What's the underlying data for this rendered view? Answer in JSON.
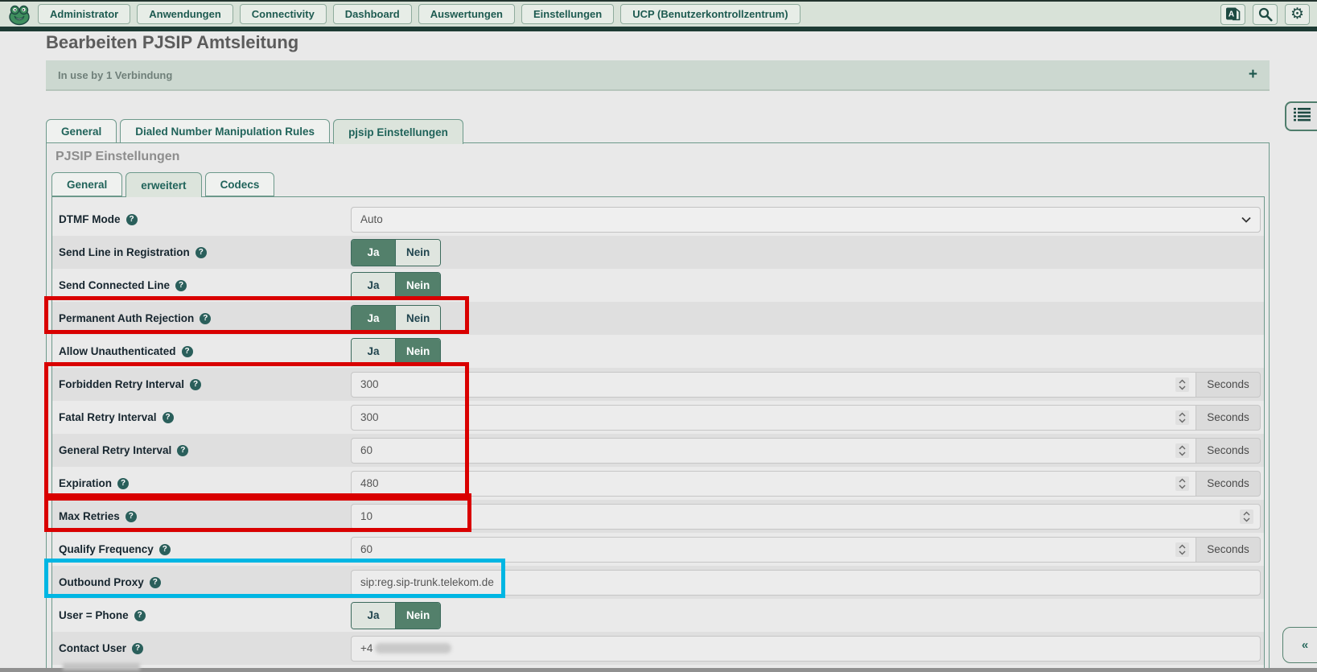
{
  "nav": {
    "menu_items": [
      "Administrator",
      "Anwendungen",
      "Connectivity",
      "Dashboard",
      "Auswertungen",
      "Einstellungen",
      "UCP (Benutzerkontrollzentrum)"
    ],
    "icon_buttons": [
      {
        "name": "translate-icon"
      },
      {
        "name": "search-icon"
      },
      {
        "name": "gear-icon"
      }
    ]
  },
  "page": {
    "title": "Bearbeiten PJSIP Amtsleitung"
  },
  "notice": {
    "text": "In use by 1 Verbindung",
    "add_button": "+"
  },
  "tabs": {
    "main": [
      {
        "label": "General",
        "active": false
      },
      {
        "label": "Dialed Number Manipulation Rules",
        "active": false
      },
      {
        "label": "pjsip Einstellungen",
        "active": true
      }
    ],
    "section_heading": "PJSIP Einstellungen",
    "sub": [
      {
        "label": "General",
        "active": false
      },
      {
        "label": "erweitert",
        "active": true
      },
      {
        "label": "Codecs",
        "active": false
      }
    ]
  },
  "form": {
    "toggle_options": [
      "Ja",
      "Nein"
    ],
    "rows": [
      {
        "label": "DTMF Mode",
        "type": "select",
        "value": "Auto"
      },
      {
        "label": "Send Line in Registration",
        "type": "toggle",
        "value": "Ja"
      },
      {
        "label": "Send Connected Line",
        "type": "toggle",
        "value": "Nein"
      },
      {
        "label": "Permanent Auth Rejection",
        "type": "toggle",
        "value": "Ja"
      },
      {
        "label": "Allow Unauthenticated",
        "type": "toggle",
        "value": "Nein"
      },
      {
        "label": "Forbidden Retry Interval",
        "type": "number",
        "value": "300",
        "unit": "Seconds"
      },
      {
        "label": "Fatal Retry Interval",
        "type": "number",
        "value": "300",
        "unit": "Seconds"
      },
      {
        "label": "General Retry Interval",
        "type": "number",
        "value": "60",
        "unit": "Seconds"
      },
      {
        "label": "Expiration",
        "type": "number",
        "value": "480",
        "unit": "Seconds"
      },
      {
        "label": "Max Retries",
        "type": "number",
        "value": "10",
        "unit": ""
      },
      {
        "label": "Qualify Frequency",
        "type": "number",
        "value": "60",
        "unit": "Seconds"
      },
      {
        "label": "Outbound Proxy",
        "type": "text",
        "value": "sip:reg.sip-trunk.telekom.de"
      },
      {
        "label": "User = Phone",
        "type": "toggle",
        "value": "Nein"
      },
      {
        "label": "Contact User",
        "type": "text",
        "value": "+4",
        "redacted": true
      }
    ]
  },
  "annotations": [
    {
      "shape": "box",
      "color": "#d90000",
      "covers": "Permanent Auth Rejection"
    },
    {
      "shape": "box",
      "color": "#d90000",
      "covers": "Forbidden Retry Interval / Fatal Retry Interval / General Retry Interval / Expiration"
    },
    {
      "shape": "box",
      "color": "#d90000",
      "covers": "Max Retries"
    },
    {
      "shape": "box",
      "color": "#00b6e3",
      "covers": "Outbound Proxy"
    }
  ],
  "side_controls": {
    "collapse_label": "«"
  },
  "colors": {
    "accent_teal": "#1d5a50",
    "toggle_active_green": "#53806b",
    "annotation_red": "#d90000",
    "annotation_cyan": "#00b6e3"
  }
}
